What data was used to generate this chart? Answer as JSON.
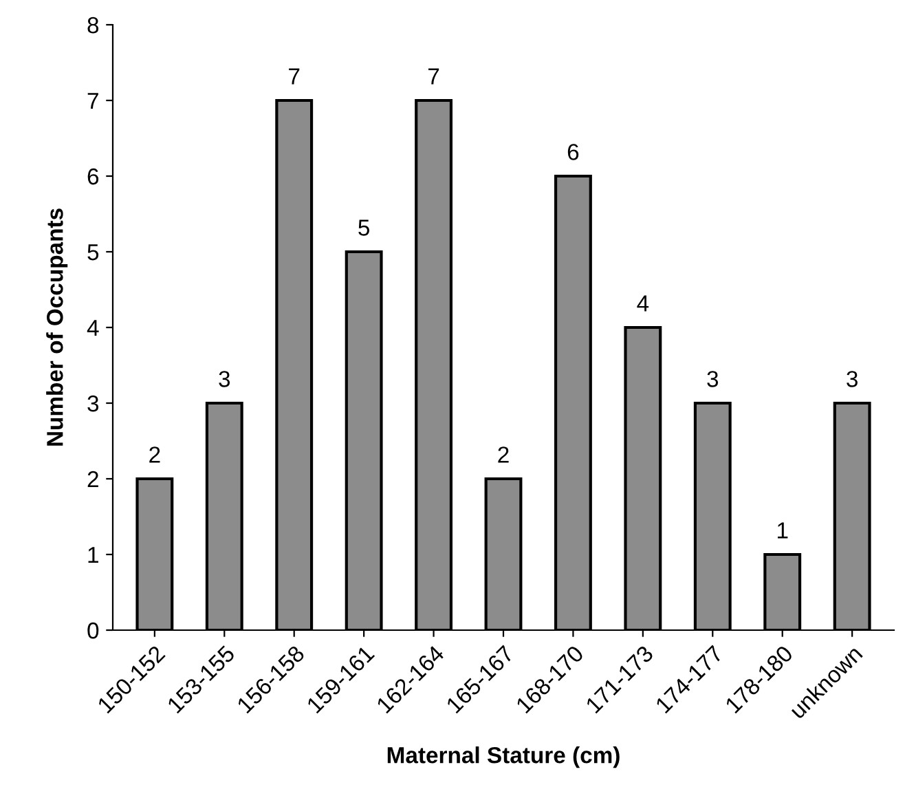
{
  "chart_data": {
    "type": "bar",
    "xlabel": "Maternal Stature (cm)",
    "ylabel": "Number of Occupants",
    "categories": [
      "150-152",
      "153-155",
      "156-158",
      "159-161",
      "162-164",
      "165-167",
      "168-170",
      "171-173",
      "174-177",
      "178-180",
      "unknown"
    ],
    "values": [
      2,
      3,
      7,
      5,
      7,
      2,
      6,
      4,
      3,
      1,
      3
    ],
    "color": "#8c8c8c",
    "ylim": [
      0,
      8
    ],
    "yticks": [
      0,
      1,
      2,
      3,
      4,
      5,
      6,
      7,
      8
    ],
    "data_labels": true,
    "grid": false,
    "legend": false
  }
}
